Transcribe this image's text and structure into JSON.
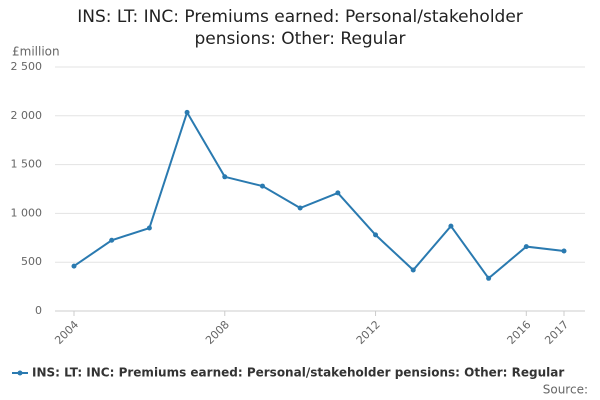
{
  "chart_data": {
    "type": "line",
    "title": "INS: LT: INC: Premiums earned: Personal/stakeholder pensions: Other: Regular",
    "y_label": "£million",
    "source": "Source:",
    "x": [
      2004,
      2005,
      2006,
      2007,
      2008,
      2009,
      2010,
      2011,
      2012,
      2013,
      2014,
      2015,
      2016,
      2017
    ],
    "series": [
      {
        "name": "INS: LT: INC: Premiums earned: Personal/stakeholder pensions: Other: Regular",
        "color": "#2a7ab0",
        "values": [
          460,
          725,
          850,
          2035,
          1375,
          1280,
          1055,
          1210,
          780,
          420,
          870,
          335,
          660,
          615
        ]
      }
    ],
    "xlim": [
      2004,
      2017
    ],
    "xticks": [
      2004,
      2008,
      2012,
      2016,
      2017
    ],
    "ylim": [
      0,
      2500
    ],
    "yticks": [
      0,
      500,
      {
        "value": 1000,
        "label": "1 000"
      },
      {
        "value": 1500,
        "label": "1 500"
      },
      {
        "value": 2000,
        "label": "2 000"
      },
      {
        "value": 2500,
        "label": "2 500"
      }
    ],
    "grid": true
  }
}
